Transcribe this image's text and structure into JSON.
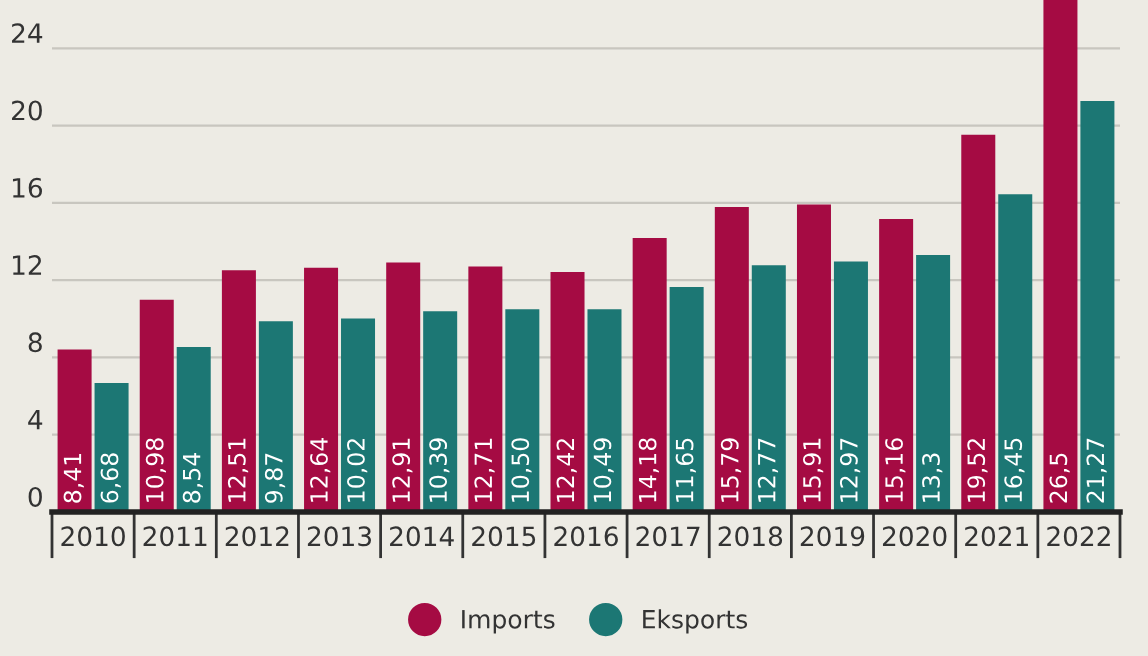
{
  "chart_data": {
    "type": "bar",
    "categories": [
      "2010",
      "2011",
      "2012",
      "2013",
      "2014",
      "2015",
      "2016",
      "2017",
      "2018",
      "2019",
      "2020",
      "2021",
      "2022"
    ],
    "series": [
      {
        "name": "Imports",
        "color": "#a50b43",
        "values": [
          8.41,
          10.98,
          12.51,
          12.64,
          12.91,
          12.71,
          12.42,
          14.18,
          15.79,
          15.91,
          15.16,
          19.52,
          26.5
        ],
        "value_labels": [
          "8,41",
          "10,98",
          "12,51",
          "12,64",
          "12,91",
          "12,71",
          "12,42",
          "14,18",
          "15,79",
          "15,91",
          "15,16",
          "19,52",
          "26,5"
        ]
      },
      {
        "name": "Eksports",
        "color": "#1c7774",
        "values": [
          6.68,
          8.54,
          9.87,
          10.02,
          10.39,
          10.5,
          10.49,
          11.65,
          12.77,
          12.97,
          13.3,
          16.45,
          21.27
        ],
        "value_labels": [
          "6,68",
          "8,54",
          "9,87",
          "10,02",
          "10,39",
          "10,50",
          "10,49",
          "11,65",
          "12,77",
          "12,97",
          "13,3",
          "16,45",
          "21,27"
        ]
      }
    ],
    "ylim": [
      0,
      26.5
    ],
    "yticks": [
      0,
      4,
      8,
      12,
      16,
      20,
      24
    ],
    "grid": "y",
    "legend": "bottom"
  }
}
